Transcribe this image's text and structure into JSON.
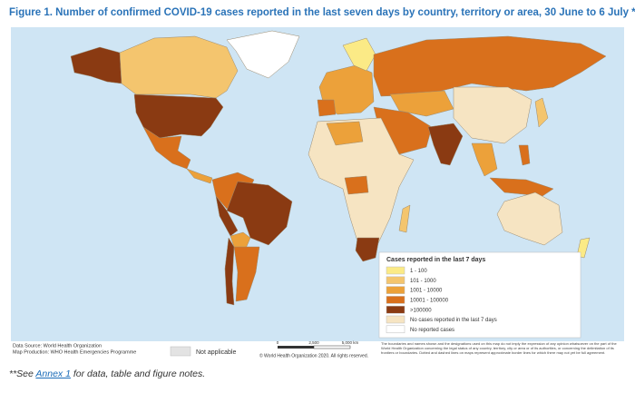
{
  "title": "Figure 1. Number of confirmed COVID-19 cases reported in the last seven days by country, territory or area, 30 June to 6 July **",
  "legend": {
    "title": "Cases reported in the last 7 days",
    "items": [
      {
        "label": "1 - 100",
        "color": "#fbea86"
      },
      {
        "label": "101 - 1000",
        "color": "#f4c56e"
      },
      {
        "label": "1001 - 10000",
        "color": "#eca13a"
      },
      {
        "label": "10001 - 100000",
        "color": "#d9701c"
      },
      {
        "label": ">100000",
        "color": "#8a3a12"
      },
      {
        "label": "No cases reported in the last 7 days",
        "color": "#f6e4c2"
      },
      {
        "label": "No reported cases",
        "color": "#ffffff"
      }
    ]
  },
  "not_applicable": "Not applicable",
  "scale": [
    "0",
    "2,500",
    "5,000 km"
  ],
  "credits": {
    "data_source": "Data Source: World Health Organization",
    "map_production": "Map Production: WHO Health Emergencies Programme",
    "copyright": "© World Health Organization 2020. All rights reserved.",
    "disclaimer": "The boundaries and names shown and the designations used on this map do not imply the expression of any opinion whatsoever on the part of the World Health Organization concerning the legal status of any country, territory, city or area or of its authorities, or concerning the delimitation of its frontiers or boundaries. Dotted and dashed lines on maps represent approximate border lines for which there may not yet be full agreement."
  },
  "footer": {
    "prefix": "**See ",
    "link": "Annex 1",
    "suffix": " for data, table and figure notes."
  }
}
